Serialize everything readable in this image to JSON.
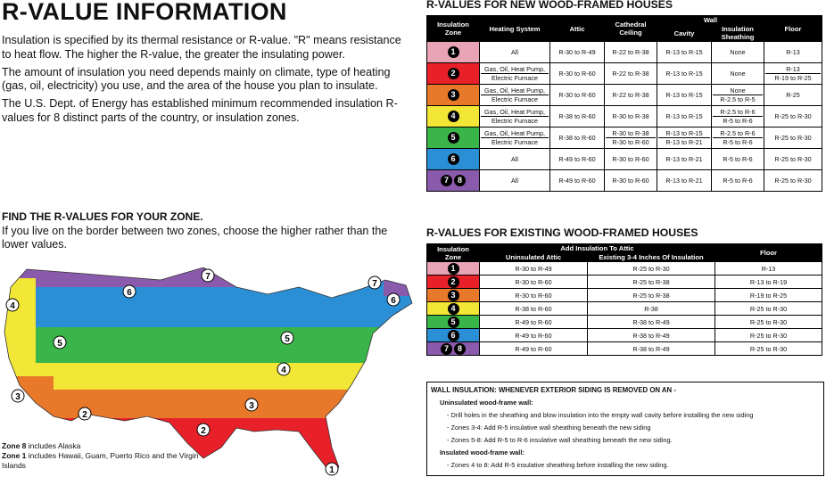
{
  "title": "R-VALUE INFORMATION",
  "intro": [
    "Insulation is specified by its thermal resistance or R-value. \"R\" means resistance to heat flow. The higher the R-value, the greater the insulating power.",
    "The amount of insulation you need depends mainly on climate, type of heating (gas, oil, electricity) you use, and the area of the house you plan to insulate.",
    "The U.S. Dept. of Energy has established minimum recommended insulation R-values for 8 distinct parts of the country, or insulation zones."
  ],
  "find": {
    "heading": "FIND THE R-VALUES FOR YOUR ZONE.",
    "text": "If you live on the border between two zones, choose the higher rather than the lower values."
  },
  "map_notes": {
    "zone8_bold": "Zone 8",
    "zone8_text": " includes Alaska",
    "zone1_bold": "Zone 1",
    "zone1_text": " includes Hawaii, Guam, Puerto Rico and the Virgin Islands"
  },
  "zone_colors": {
    "1": "#e8a3b5",
    "2": "#e8202a",
    "3": "#e8782a",
    "4": "#f2e636",
    "5": "#3ab54a",
    "6": "#2b8fd6",
    "7": "#8a5aad"
  },
  "map_labels": [
    "1",
    "2",
    "2",
    "3",
    "3",
    "4",
    "4",
    "5",
    "5",
    "6",
    "6",
    "7",
    "7"
  ],
  "new_title": "R-VALUES FOR NEW WOOD-FRAMED HOUSES",
  "new_headers": {
    "zone": "Insulation Zone",
    "heating": "Heating System",
    "attic": "Attic",
    "cathedral": "Cathedral Ceiling",
    "wall": "Wall",
    "cavity": "Cavity",
    "sheathing": "Insulation Sheathing",
    "floor": "Floor"
  },
  "new_rows": [
    {
      "zone": "1",
      "color": "#e8a3b5",
      "heating": [
        "All"
      ],
      "attic": [
        "R-30 to R-49"
      ],
      "cathedral": [
        "R-22 to R-38"
      ],
      "cavity": [
        "R-13 to R-15"
      ],
      "sheathing": [
        "None"
      ],
      "floor": [
        "R-13"
      ]
    },
    {
      "zone": "2",
      "color": "#e8202a",
      "heating": [
        "Gas, Oil, Heat Pump,",
        "Electric Furnace"
      ],
      "attic": [
        "R-30 to R-60"
      ],
      "cathedral": [
        "R-22 to R-38"
      ],
      "cavity": [
        "R-13 to R-15"
      ],
      "sheathing": [
        "None"
      ],
      "floor": [
        "R-13",
        "R-19 to R-25"
      ]
    },
    {
      "zone": "3",
      "color": "#e8782a",
      "heating": [
        "Gas, Oil, Heat Pump,",
        "Electric Furnace"
      ],
      "attic": [
        "R-30 to R-60"
      ],
      "cathedral": [
        "R-22 to R-38"
      ],
      "cavity": [
        "R-13 to R-15"
      ],
      "sheathing": [
        "None",
        "R-2.5 to R-5"
      ],
      "floor": [
        "R-25"
      ]
    },
    {
      "zone": "4",
      "color": "#f2e636",
      "heating": [
        "Gas, Oil, Heat Pump,",
        "Electric Furnace"
      ],
      "attic": [
        "R-38 to R-60"
      ],
      "cathedral": [
        "R-30 to R-38"
      ],
      "cavity": [
        "R-13 to R-15"
      ],
      "sheathing": [
        "R-2.5 to R-6",
        "R-5 to R-6"
      ],
      "floor": [
        "R-25 to R-30"
      ]
    },
    {
      "zone": "5",
      "color": "#3ab54a",
      "heating": [
        "Gas, Oil, Heat Pump,",
        "Electric Furnace"
      ],
      "attic": [
        "R-38 to R-60"
      ],
      "cathedral": [
        "R-30 to R-38",
        "R-30 to R-60"
      ],
      "cavity": [
        "R-13 to R-15",
        "R-13 to R-21"
      ],
      "sheathing": [
        "R-2.5 to R-6",
        "R-5 to R-6"
      ],
      "floor": [
        "R-25 to R-30"
      ]
    },
    {
      "zone": "6",
      "color": "#2b8fd6",
      "heating": [
        "All"
      ],
      "attic": [
        "R-49 to R-60"
      ],
      "cathedral": [
        "R-30 to R-60"
      ],
      "cavity": [
        "R-13 to R-21"
      ],
      "sheathing": [
        "R-5 to R-6"
      ],
      "floor": [
        "R-25 to R-30"
      ]
    },
    {
      "zone": "7",
      "zone2": "8",
      "color": "#8a5aad",
      "heating": [
        "All"
      ],
      "attic": [
        "R-49 to R-60"
      ],
      "cathedral": [
        "R-30 to R-60"
      ],
      "cavity": [
        "R-13 to R-21"
      ],
      "sheathing": [
        "R-5 to R-6"
      ],
      "floor": [
        "R-25 to R-30"
      ]
    }
  ],
  "exist_title": "R-VALUES FOR EXISTING WOOD-FRAMED HOUSES",
  "exist_headers": {
    "zone": "Insulation Zone",
    "add": "Add Insulation To Attic",
    "uninsulated": "Uninsulated Attic",
    "existing": "Existing 3-4 Inches Of Insulation",
    "floor": "Floor"
  },
  "exist_rows": [
    {
      "zone": "1",
      "color": "#e8a3b5",
      "un": "R-30 to R-49",
      "ex": "R-25 to R-30",
      "floor": "R-13"
    },
    {
      "zone": "2",
      "color": "#e8202a",
      "un": "R-30 to R-60",
      "ex": "R-25 to R-38",
      "floor": "R-13 to R-19"
    },
    {
      "zone": "3",
      "color": "#e8782a",
      "un": "R-30 to R-60",
      "ex": "R-25 to R-38",
      "floor": "R-19 to R-25"
    },
    {
      "zone": "4",
      "color": "#f2e636",
      "un": "R-38 to R-60",
      "ex": "R-38",
      "floor": "R-25 to R-30"
    },
    {
      "zone": "5",
      "color": "#3ab54a",
      "un": "R-49 to R-60",
      "ex": "R-38 to R-49",
      "floor": "R-25 to R-30"
    },
    {
      "zone": "6",
      "color": "#2b8fd6",
      "un": "R-49 to R-60",
      "ex": "R-38 to R-49",
      "floor": "R-25 to R-30"
    },
    {
      "zone": "7",
      "zone2": "8",
      "color": "#8a5aad",
      "un": "R-49 to R-60",
      "ex": "R-38 to R-49",
      "floor": "R-25 to R-30"
    }
  ],
  "wall": {
    "heading": "WALL INSULATION: WHENEVER EXTERIOR SIDING IS REMOVED ON AN -",
    "uninsulated": "Uninsulated wood-frame wall:",
    "u1": "- Drill holes in the sheathing and blow insulation into the empty wall cavity before installing the new siding",
    "u2": "- Zones 3-4: Add R-5 insulative wall sheathing beneath the new siding",
    "u3": "- Zones 5-8: Add R-5 to R-6 insulative wall sheathing beneath the new siding.",
    "insulated": "Insulated wood-frame wall:",
    "i1": "- Zones 4 to 8: Add R-5 insulative sheathing before installing the new siding."
  }
}
